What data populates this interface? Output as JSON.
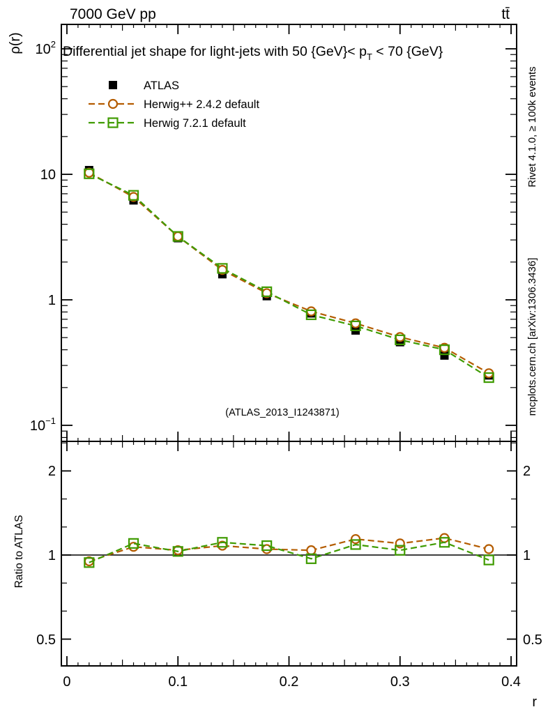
{
  "header": {
    "left": "7000 GeV pp",
    "right": "tt̄"
  },
  "panel_title": {
    "pre": "Differential jet shape for light-jets with 50 {GeV}< p",
    "sub": "T",
    "post": " < 70 {GeV}"
  },
  "watermark": "(ATLAS_2013_I1243871)",
  "side_text_top": "Rivet 4.1.0, ≥ 100k events",
  "side_text_bottom": "mcplots.cern.ch [arXiv:1306.3436]",
  "ylabel_top": "ρ(r)",
  "ylabel_bottom": "Ratio to ATLAS",
  "xlabel": "r",
  "colors": {
    "atlas": "#000000",
    "herwigpp": "#b45c00",
    "herwig7": "#3f9b00",
    "gray_text": "#7b7b7b",
    "watermark": "#b0b0b0"
  },
  "legend": [
    {
      "name": "ATLAS",
      "marker": "square-filled",
      "color": "#000000",
      "dashed": false
    },
    {
      "name": "Herwig++ 2.4.2 default",
      "marker": "circle-open",
      "color": "#b45c00",
      "dashed": true
    },
    {
      "name": "Herwig 7.2.1 default",
      "marker": "square-open",
      "color": "#3f9b00",
      "dashed": true
    }
  ],
  "axes": {
    "x": {
      "min": -0.005,
      "max": 0.405,
      "ticks": [
        {
          "v": 0.0,
          "label": "0"
        },
        {
          "v": 0.1,
          "label": "0.1"
        },
        {
          "v": 0.2,
          "label": "0.2"
        },
        {
          "v": 0.3,
          "label": "0.3"
        },
        {
          "v": 0.4,
          "label": "0.4"
        }
      ]
    },
    "top_y": {
      "scale": "log",
      "min": 0.075,
      "max": 156,
      "ticks": [
        {
          "v": 100,
          "label": "10",
          "exp": "2"
        },
        {
          "v": 10,
          "label": "10",
          "exp": ""
        },
        {
          "v": 1,
          "label": "1",
          "exp": ""
        },
        {
          "v": 0.1,
          "label": "10",
          "exp": "−1"
        }
      ]
    },
    "bottom_y": {
      "scale": "log",
      "min": 0.4,
      "max": 2.54,
      "ticks": [
        {
          "v": 2,
          "label": "2"
        },
        {
          "v": 1,
          "label": "1"
        },
        {
          "v": 0.5,
          "label": "0.5"
        }
      ]
    }
  },
  "chart_data": [
    {
      "type": "line",
      "panel": "main",
      "title": "Differential jet shape for light-jets with 50 {GeV}< p_T < 70 {GeV}",
      "xlabel": "r",
      "ylabel": "ρ(r)",
      "xlim": [
        -0.005,
        0.405
      ],
      "ylim": [
        0.075,
        156
      ],
      "yscale": "log",
      "grid": false,
      "legend_position": "upper-left",
      "x": [
        0.02,
        0.06,
        0.1,
        0.14,
        0.18,
        0.22,
        0.26,
        0.3,
        0.34,
        0.38
      ],
      "series": [
        {
          "name": "ATLAS",
          "marker": "square-filled",
          "line": "none",
          "values": [
            10.8,
            6.2,
            3.1,
            1.6,
            1.07,
            0.78,
            0.57,
            0.46,
            0.36,
            0.25
          ]
        },
        {
          "name": "Herwig++ 2.4.2 default",
          "marker": "circle-open",
          "line": "dashed",
          "values": [
            10.3,
            6.6,
            3.2,
            1.73,
            1.13,
            0.81,
            0.65,
            0.505,
            0.415,
            0.26
          ]
        },
        {
          "name": "Herwig 7.2.1 default",
          "marker": "square-open",
          "line": "dashed",
          "values": [
            10.1,
            6.8,
            3.2,
            1.78,
            1.16,
            0.76,
            0.62,
            0.48,
            0.4,
            0.24
          ]
        }
      ]
    },
    {
      "type": "line",
      "panel": "ratio",
      "title": "Ratio to ATLAS",
      "xlim": [
        -0.005,
        0.405
      ],
      "ylim": [
        0.4,
        2.54
      ],
      "yscale": "log",
      "reference_line": 1.0,
      "x": [
        0.02,
        0.06,
        0.1,
        0.14,
        0.18,
        0.22,
        0.26,
        0.3,
        0.34,
        0.38
      ],
      "series": [
        {
          "name": "Herwig++ 2.4.2 default",
          "marker": "circle-open",
          "line": "dashed",
          "values": [
            0.95,
            1.07,
            1.04,
            1.08,
            1.05,
            1.04,
            1.14,
            1.1,
            1.15,
            1.05
          ]
        },
        {
          "name": "Herwig 7.2.1 default",
          "marker": "square-open",
          "line": "dashed",
          "values": [
            0.94,
            1.1,
            1.03,
            1.11,
            1.08,
            0.97,
            1.09,
            1.04,
            1.11,
            0.96
          ]
        }
      ]
    }
  ]
}
